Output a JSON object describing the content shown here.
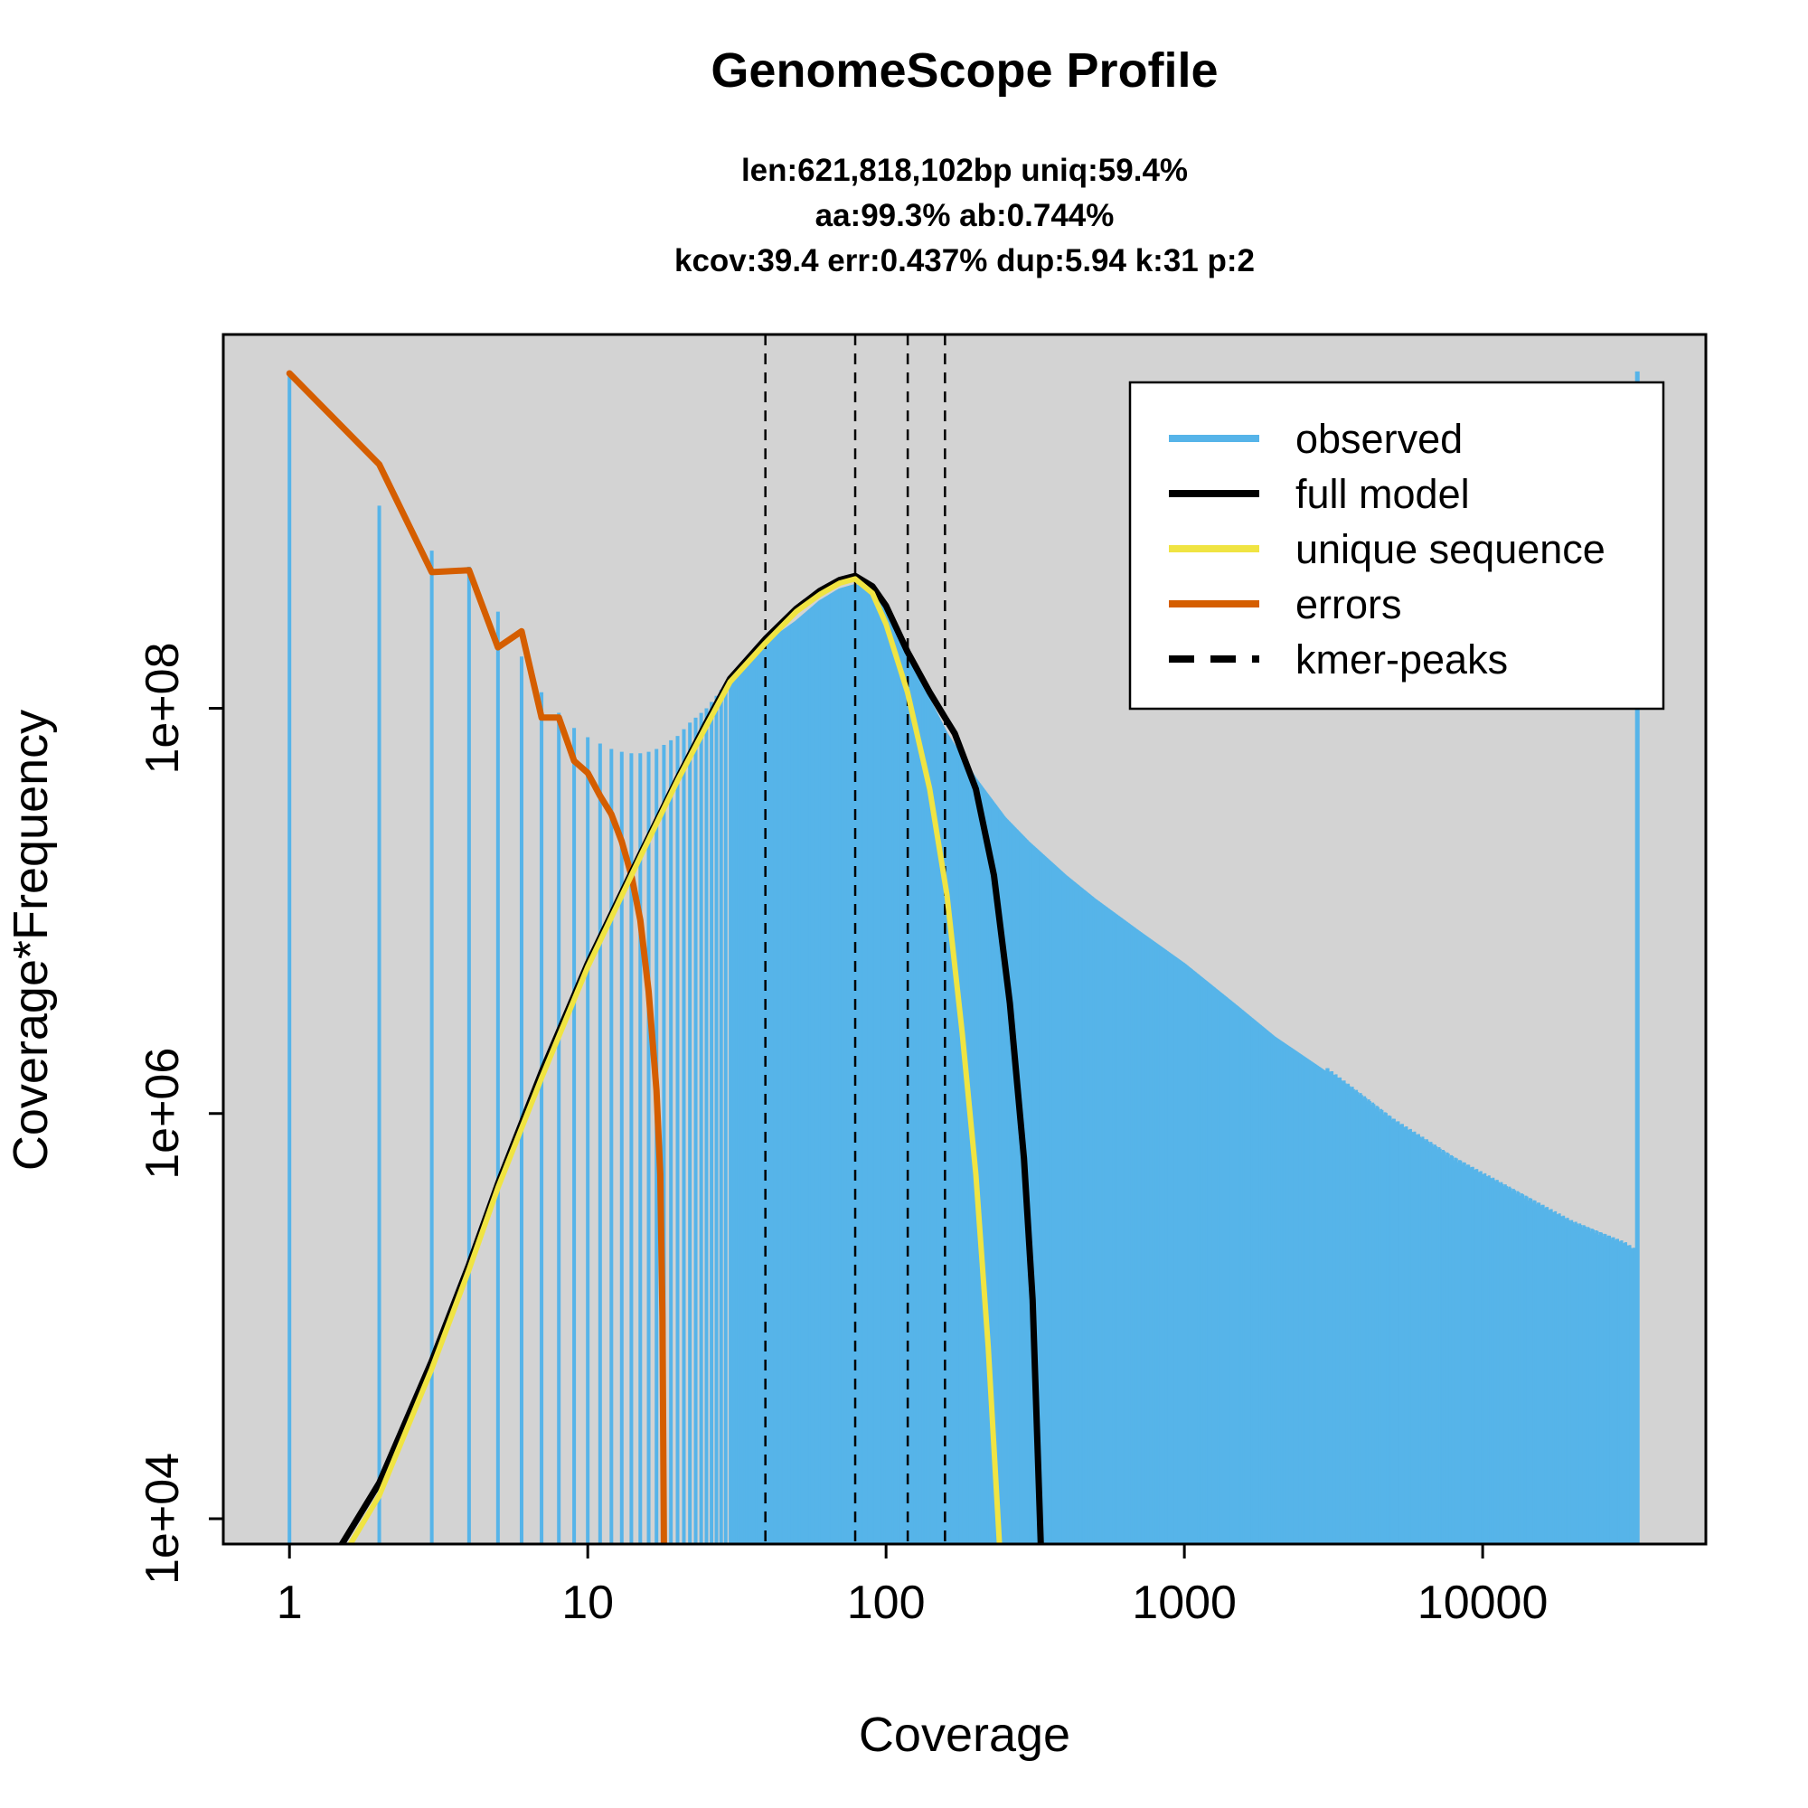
{
  "chart_data": {
    "type": "line",
    "title": "GenomeScope Profile",
    "subtitle_lines": [
      "len:621,818,102bp uniq:59.4%",
      "aa:99.3% ab:0.744%",
      "kcov:39.4 err:0.437%  dup:5.94  k:31 p:2"
    ],
    "xlabel": "Coverage",
    "ylabel": "Coverage*Frequency",
    "x_scale": "log",
    "y_scale": "log",
    "xlim": [
      0.6,
      56000
    ],
    "ylim": [
      7500,
      7000000000
    ],
    "x_ticks": [
      1,
      10,
      100,
      1000,
      10000
    ],
    "x_tick_labels": [
      "1",
      "10",
      "100",
      "1000",
      "10000"
    ],
    "y_ticks": [
      10000,
      1000000,
      100000000
    ],
    "y_tick_labels": [
      "1e+04",
      "1e+06",
      "1e+08"
    ],
    "background_color": "#d3d3d3",
    "legend": {
      "position": "top-right",
      "entries": [
        {
          "label": "observed",
          "color": "#56b4e9",
          "style": "solid"
        },
        {
          "label": "full model",
          "color": "#000000",
          "style": "solid"
        },
        {
          "label": "unique sequence",
          "color": "#f0e442",
          "style": "solid"
        },
        {
          "label": "errors",
          "color": "#d55e00",
          "style": "solid"
        },
        {
          "label": "kmer-peaks",
          "color": "#000000",
          "style": "dashed"
        }
      ]
    },
    "kmer_peaks": [
      39.4,
      78.8,
      118.2,
      157.6
    ],
    "observed": {
      "name": "observed",
      "color": "#56b4e9",
      "profile": [
        [
          1,
          4500000000
        ],
        [
          2,
          1000000000
        ],
        [
          3,
          600000000
        ],
        [
          4,
          500000000
        ],
        [
          5,
          300000000
        ],
        [
          6,
          180000000
        ],
        [
          7,
          120000000
        ],
        [
          8,
          95000000
        ],
        [
          9,
          80000000
        ],
        [
          10,
          72000000
        ],
        [
          11,
          67000000
        ],
        [
          12,
          63000000
        ],
        [
          13,
          61000000
        ],
        [
          14,
          60000000
        ],
        [
          15,
          60000000
        ],
        [
          16,
          61000000
        ],
        [
          17,
          63000000
        ],
        [
          18,
          66000000
        ],
        [
          20,
          73000000
        ],
        [
          22,
          85000000
        ],
        [
          25,
          100000000
        ],
        [
          30,
          140000000
        ],
        [
          35,
          180000000
        ],
        [
          39.4,
          210000000
        ],
        [
          50,
          270000000
        ],
        [
          60,
          340000000
        ],
        [
          70,
          390000000
        ],
        [
          78.8,
          410000000
        ],
        [
          90,
          380000000
        ],
        [
          100,
          300000000
        ],
        [
          118,
          200000000
        ],
        [
          140,
          110000000
        ],
        [
          160,
          75000000
        ],
        [
          200,
          45000000
        ],
        [
          250,
          29000000
        ],
        [
          300,
          22000000
        ],
        [
          400,
          15000000
        ],
        [
          500,
          11500000
        ],
        [
          700,
          8000000
        ],
        [
          1000,
          5500000
        ],
        [
          1500,
          3400000
        ],
        [
          2000,
          2400000
        ],
        [
          3000,
          1600000
        ],
        [
          5000,
          900000
        ],
        [
          8000,
          580000
        ],
        [
          12000,
          420000
        ],
        [
          20000,
          280000
        ],
        [
          30000,
          220000
        ],
        [
          33000,
          200000
        ]
      ],
      "final_spike": [
        33000,
        4600000000
      ]
    },
    "series": [
      {
        "name": "full model",
        "color": "#000000",
        "points": [
          [
            1.5,
            7500
          ],
          [
            2,
            15000
          ],
          [
            3,
            60000
          ],
          [
            4,
            180000
          ],
          [
            5,
            450000
          ],
          [
            7,
            1600000
          ],
          [
            10,
            5500000
          ],
          [
            15,
            19000000
          ],
          [
            20,
            45000000
          ],
          [
            25,
            85000000
          ],
          [
            30,
            140000000
          ],
          [
            39.4,
            220000000
          ],
          [
            50,
            310000000
          ],
          [
            60,
            380000000
          ],
          [
            70,
            430000000
          ],
          [
            78.8,
            450000000
          ],
          [
            90,
            400000000
          ],
          [
            100,
            320000000
          ],
          [
            118,
            190000000
          ],
          [
            140,
            120000000
          ],
          [
            157.6,
            90000000
          ],
          [
            170,
            75000000
          ],
          [
            200,
            40000000
          ],
          [
            230,
            15000000
          ],
          [
            260,
            3500000
          ],
          [
            290,
            600000
          ],
          [
            310,
            120000
          ],
          [
            330,
            7500
          ]
        ]
      },
      {
        "name": "unique sequence",
        "color": "#f0e442",
        "points": [
          [
            1.6,
            7500
          ],
          [
            2,
            13000
          ],
          [
            3,
            55000
          ],
          [
            4,
            170000
          ],
          [
            5,
            430000
          ],
          [
            7,
            1500000
          ],
          [
            10,
            5300000
          ],
          [
            15,
            18500000
          ],
          [
            20,
            44000000
          ],
          [
            25,
            82000000
          ],
          [
            30,
            135000000
          ],
          [
            39.4,
            210000000
          ],
          [
            50,
            300000000
          ],
          [
            60,
            365000000
          ],
          [
            70,
            415000000
          ],
          [
            78.8,
            435000000
          ],
          [
            90,
            370000000
          ],
          [
            100,
            260000000
          ],
          [
            118,
            120000000
          ],
          [
            140,
            40000000
          ],
          [
            160,
            12000000
          ],
          [
            180,
            2500000
          ],
          [
            200,
            500000
          ],
          [
            220,
            70000
          ],
          [
            240,
            7500
          ]
        ]
      },
      {
        "name": "errors",
        "color": "#d55e00",
        "points": [
          [
            1,
            4500000000
          ],
          [
            2,
            1600000000
          ],
          [
            3,
            470000000
          ],
          [
            4,
            480000000
          ],
          [
            5,
            200000000
          ],
          [
            6,
            240000000
          ],
          [
            7,
            90000000
          ],
          [
            8,
            90000000
          ],
          [
            9,
            55000000
          ],
          [
            10,
            48000000
          ],
          [
            11,
            37000000
          ],
          [
            12,
            30000000
          ],
          [
            13,
            22000000
          ],
          [
            14,
            15000000
          ],
          [
            15,
            9000000
          ],
          [
            16,
            4000000
          ],
          [
            17,
            1300000
          ],
          [
            17.5,
            500000
          ],
          [
            17.8,
            100000
          ],
          [
            18,
            7500
          ]
        ]
      }
    ]
  }
}
